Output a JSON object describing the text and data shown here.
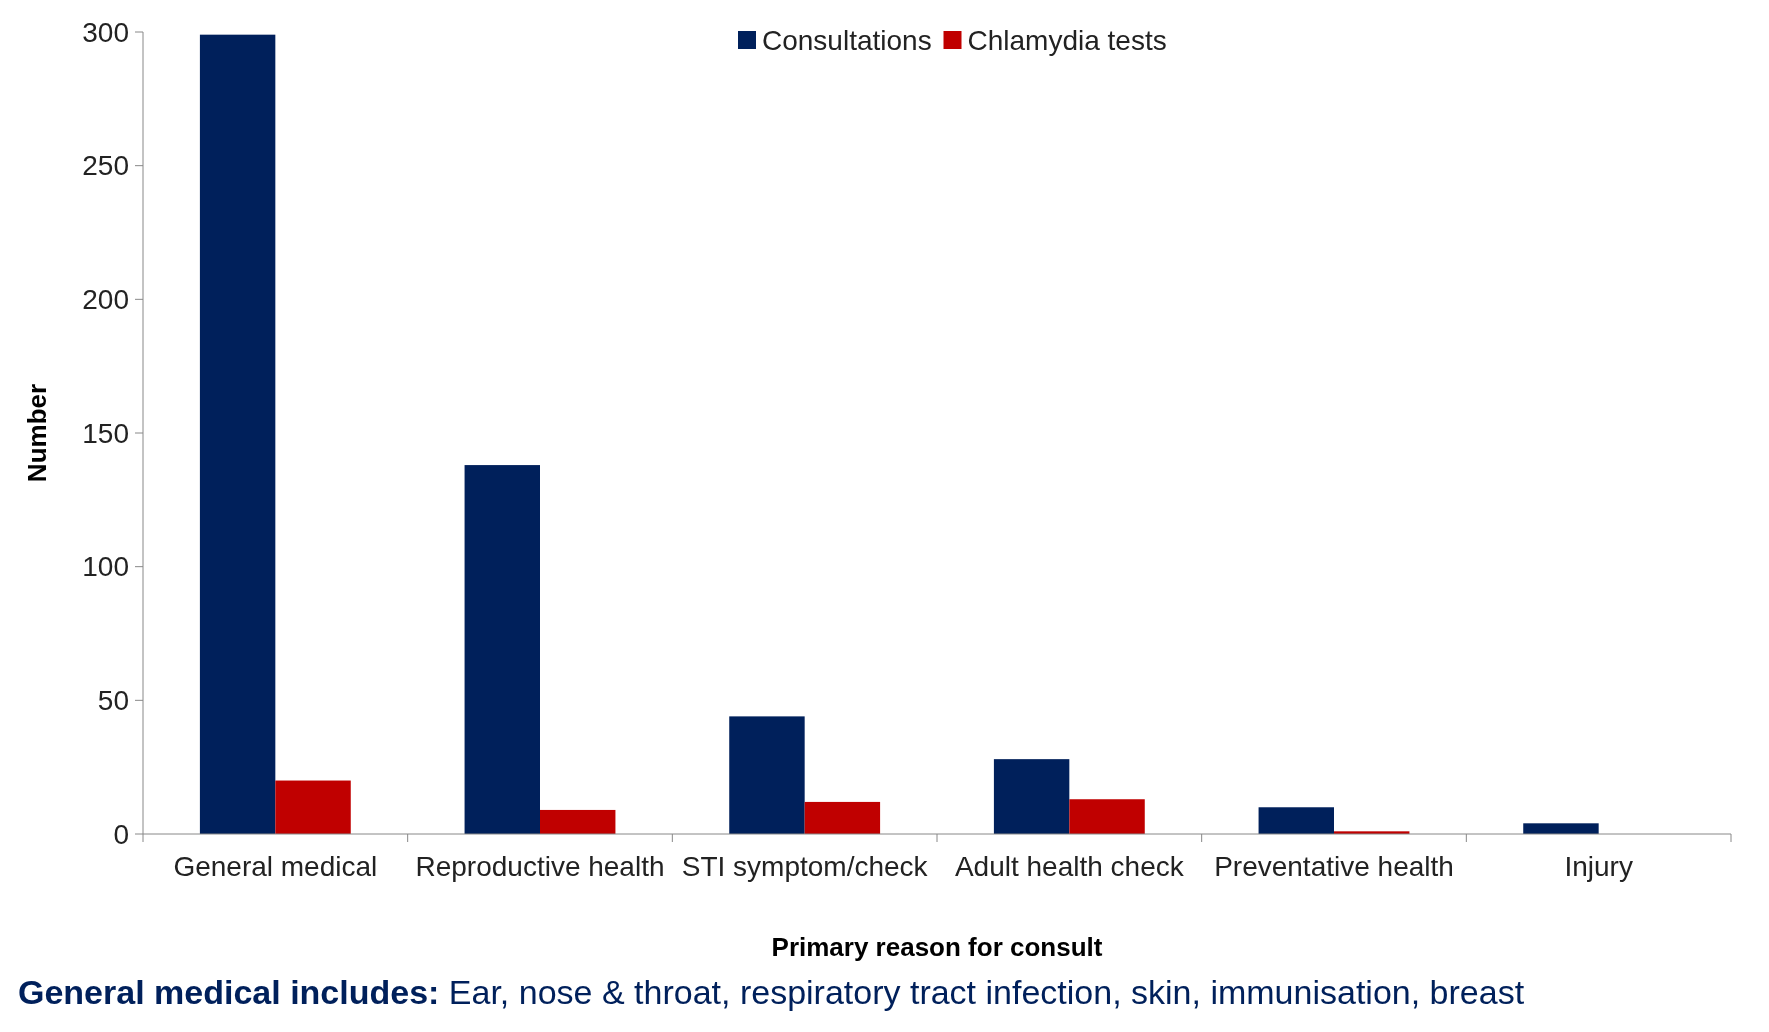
{
  "chart_data": {
    "type": "bar",
    "xlabel": "Primary reason for consult",
    "ylabel": "Number",
    "categories": [
      "General medical",
      "Reproductive health",
      "STI symptom/check",
      "Adult health check",
      "Preventative health",
      "Injury"
    ],
    "series": [
      {
        "name": "Consultations",
        "color": "#00205b",
        "values": [
          299,
          138,
          44,
          28,
          10,
          4
        ]
      },
      {
        "name": "Chlamydia tests",
        "color": "#c00000",
        "values": [
          20,
          9,
          12,
          13,
          1,
          0
        ]
      }
    ],
    "ylim": [
      0,
      300
    ],
    "yticks": [
      0,
      50,
      100,
      150,
      200,
      250,
      300
    ],
    "grid": false,
    "legend": "top",
    "annotations": [
      "General medical includes: Ear, nose & throat, respiratory tract infection, skin, immunisation, breast"
    ]
  }
}
